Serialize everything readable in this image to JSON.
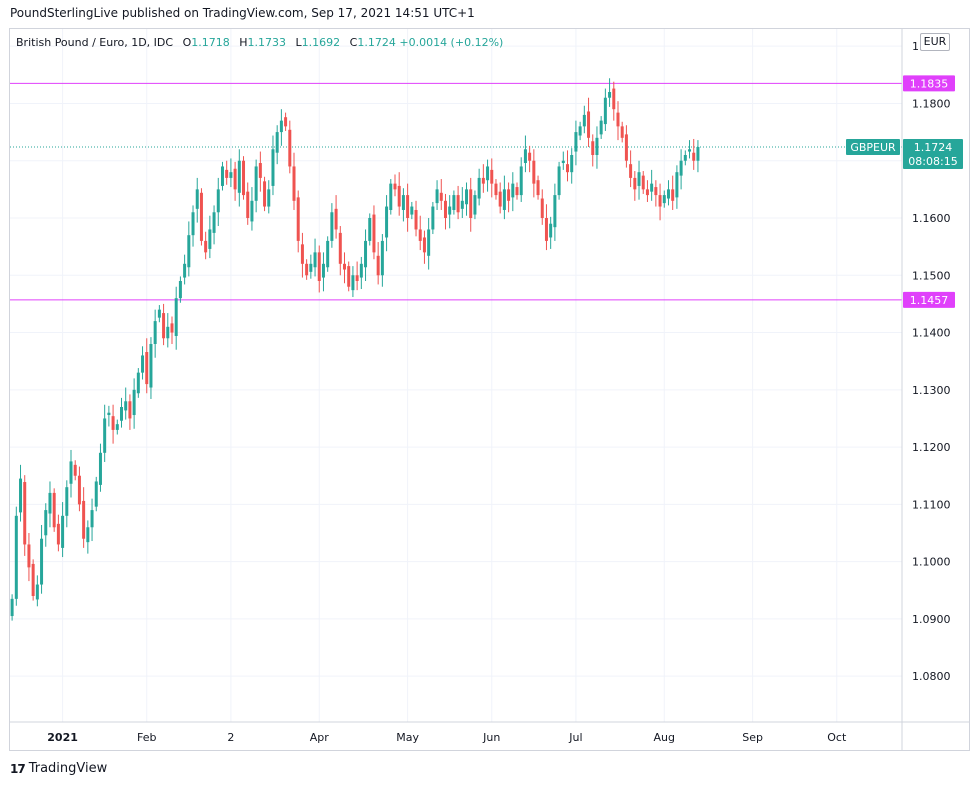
{
  "header": {
    "published": "PoundSterlingLive published on TradingView.com, Sep 17, 2021 14:51 UTC+1"
  },
  "legend": {
    "title": "British Pound / Euro, 1D, IDC",
    "open_label": "O",
    "open": "1.1718",
    "high_label": "H",
    "high": "1.1733",
    "low_label": "L",
    "low": "1.1692",
    "close_label": "C",
    "close": "1.1724",
    "change": "+0.0014 (+0.12%)"
  },
  "currency_button": "EUR",
  "footer": {
    "logo_mark": "17",
    "brand": "TradingView"
  },
  "colors": {
    "up": "#26a69a",
    "down": "#ef5350",
    "hline": "#e040fb",
    "grid": "#f0f3fa",
    "axis_text": "#131722"
  },
  "chart_data": {
    "type": "candlestick",
    "symbol": "GBPEUR",
    "ylim": [
      1.072,
      1.193
    ],
    "yticks": [
      "1.1900",
      "1.1800",
      "1.1700",
      "1.1600",
      "1.1500",
      "1.1400",
      "1.1300",
      "1.1200",
      "1.1100",
      "1.1000",
      "1.0900",
      "1.0800"
    ],
    "xticks": [
      "2021",
      "Feb",
      "2",
      "Apr",
      "May",
      "Jun",
      "Jul",
      "Aug",
      "Sep",
      "Oct"
    ],
    "xtick_index": [
      12,
      32,
      52,
      73,
      94,
      114,
      134,
      155,
      176,
      196
    ],
    "total_slots": 212,
    "horizontal_lines": [
      {
        "label": "1.1835",
        "value": 1.1835
      },
      {
        "label": "1.1457",
        "value": 1.1457
      }
    ],
    "last_price": {
      "symbol_label": "GBPEUR",
      "value_label": "1.1724",
      "countdown": "08:08:15",
      "value": 1.1724
    },
    "closes": [
      1.0935,
      1.108,
      1.1145,
      1.103,
      1.099,
      1.094,
      1.096,
      1.104,
      1.109,
      1.112,
      1.106,
      1.103,
      1.108,
      1.113,
      1.1175,
      1.115,
      1.11,
      1.104,
      1.106,
      1.109,
      1.114,
      1.119,
      1.125,
      1.126,
      1.123,
      1.124,
      1.127,
      1.128,
      1.125,
      1.13,
      1.133,
      1.136,
      1.131,
      1.138,
      1.142,
      1.144,
      1.139,
      1.141,
      1.14,
      1.146,
      1.149,
      1.152,
      1.157,
      1.161,
      1.165,
      1.156,
      1.154,
      1.158,
      1.161,
      1.165,
      1.169,
      1.167,
      1.168,
      1.165,
      1.17,
      1.164,
      1.16,
      1.163,
      1.169,
      1.167,
      1.162,
      1.165,
      1.172,
      1.175,
      1.177,
      1.176,
      1.169,
      1.163,
      1.156,
      1.152,
      1.15,
      1.152,
      1.154,
      1.149,
      1.152,
      1.156,
      1.161,
      1.158,
      1.152,
      1.151,
      1.148,
      1.15,
      1.149,
      1.152,
      1.156,
      1.16,
      1.154,
      1.15,
      1.156,
      1.162,
      1.166,
      1.165,
      1.162,
      1.164,
      1.16,
      1.162,
      1.158,
      1.156,
      1.154,
      1.158,
      1.162,
      1.165,
      1.163,
      1.16,
      1.162,
      1.164,
      1.161,
      1.163,
      1.165,
      1.16,
      1.164,
      1.167,
      1.166,
      1.169,
      1.166,
      1.164,
      1.162,
      1.165,
      1.163,
      1.166,
      1.164,
      1.169,
      1.172,
      1.17,
      1.166,
      1.164,
      1.16,
      1.156,
      1.159,
      1.164,
      1.169,
      1.17,
      1.168,
      1.171,
      1.175,
      1.176,
      1.178,
      1.174,
      1.171,
      1.174,
      1.177,
      1.181,
      1.182,
      1.179,
      1.176,
      1.174,
      1.17,
      1.167,
      1.165,
      1.168,
      1.165,
      1.164,
      1.166,
      1.164,
      1.162,
      1.164,
      1.165,
      1.163,
      1.168,
      1.17,
      1.171,
      1.172,
      1.17,
      1.1724
    ]
  }
}
